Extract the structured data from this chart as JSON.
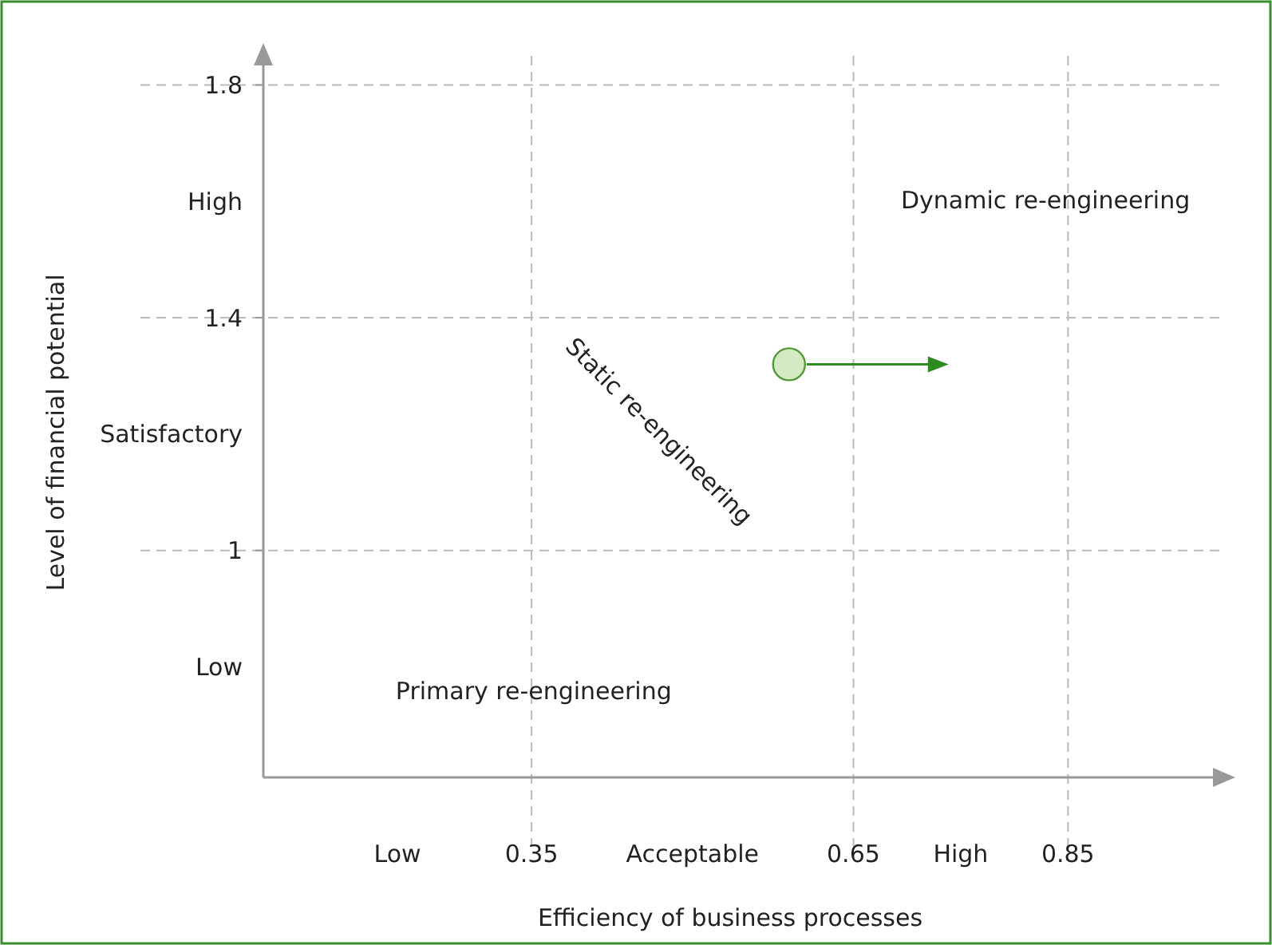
{
  "chart_data": {
    "type": "scatter",
    "xlabel": "Efficiency of business processes",
    "ylabel": "Level of financial potential",
    "xlim": [
      0.1,
      1
    ],
    "ylim": [
      0.61,
      1.85
    ],
    "xticks": [
      {
        "value": 0.225,
        "label": "Low"
      },
      0.35,
      {
        "value": 0.5,
        "label": "Acceptable"
      },
      0.65,
      {
        "value": 0.75,
        "label": "High"
      },
      0.85
    ],
    "yticks": [
      {
        "value": 0.8,
        "label": "Low"
      },
      1,
      {
        "value": 1.2,
        "label": "Satisfactory"
      },
      1.4,
      {
        "value": 1.6,
        "label": "High"
      },
      1.8
    ],
    "grid": true,
    "marker": "circle",
    "series": [
      {
        "color": "#d5eac4",
        "x": [
          0.59
        ],
        "values": [
          1.32
        ]
      }
    ],
    "annotations": [
      "Dynamic re-engineering",
      "Static re-engineering",
      "Primary re-engineering"
    ]
  }
}
